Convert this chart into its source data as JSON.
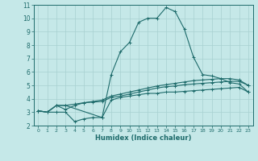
{
  "xlabel": "Humidex (Indice chaleur)",
  "bg_color": "#c5e8e8",
  "grid_color": "#a8d0d0",
  "line_color": "#1e6b6b",
  "xlim": [
    -0.5,
    23.5
  ],
  "ylim": [
    2,
    11
  ],
  "xticks": [
    0,
    1,
    2,
    3,
    4,
    5,
    6,
    7,
    8,
    9,
    10,
    11,
    12,
    13,
    14,
    15,
    16,
    17,
    18,
    19,
    20,
    21,
    22,
    23
  ],
  "yticks": [
    2,
    3,
    4,
    5,
    6,
    7,
    8,
    9,
    10,
    11
  ],
  "curve_main_x": [
    0,
    1,
    2,
    3,
    7,
    8,
    9,
    10,
    11,
    12,
    13,
    14,
    15,
    16,
    17,
    18,
    19,
    20,
    21,
    22,
    23
  ],
  "curve_main_y": [
    3.1,
    3.0,
    3.5,
    3.5,
    2.6,
    5.8,
    7.5,
    8.2,
    9.7,
    10.0,
    10.0,
    10.8,
    10.5,
    9.2,
    7.1,
    5.8,
    5.7,
    5.5,
    5.2,
    5.1,
    4.5
  ],
  "curve_low_x": [
    0,
    1,
    2,
    3,
    4,
    5,
    6,
    7,
    8,
    9,
    10,
    11,
    12,
    13,
    14,
    15,
    16,
    17,
    18,
    19,
    20,
    21,
    22,
    23
  ],
  "curve_low_y": [
    3.1,
    3.0,
    3.0,
    3.0,
    2.3,
    2.5,
    2.6,
    2.6,
    3.9,
    4.1,
    4.2,
    4.3,
    4.4,
    4.4,
    4.5,
    4.5,
    4.55,
    4.6,
    4.65,
    4.7,
    4.75,
    4.8,
    4.85,
    4.5
  ],
  "curve_mid1_x": [
    0,
    1,
    2,
    3,
    4,
    5,
    6,
    7,
    8,
    9,
    10,
    11,
    12,
    13,
    14,
    15,
    16,
    17,
    18,
    19,
    20,
    21,
    22,
    23
  ],
  "curve_mid1_y": [
    3.1,
    3.0,
    3.5,
    3.5,
    3.6,
    3.7,
    3.75,
    3.8,
    4.1,
    4.2,
    4.35,
    4.5,
    4.65,
    4.8,
    4.9,
    4.95,
    5.05,
    5.1,
    5.15,
    5.2,
    5.25,
    5.3,
    5.3,
    5.0
  ],
  "curve_mid2_x": [
    0,
    1,
    2,
    3,
    4,
    5,
    6,
    7,
    8,
    9,
    10,
    11,
    12,
    13,
    14,
    15,
    16,
    17,
    18,
    19,
    20,
    21,
    22,
    23
  ],
  "curve_mid2_y": [
    3.1,
    3.0,
    3.5,
    3.2,
    3.5,
    3.7,
    3.8,
    3.9,
    4.2,
    4.35,
    4.5,
    4.65,
    4.8,
    4.95,
    5.05,
    5.15,
    5.25,
    5.35,
    5.4,
    5.45,
    5.5,
    5.5,
    5.4,
    5.0
  ]
}
